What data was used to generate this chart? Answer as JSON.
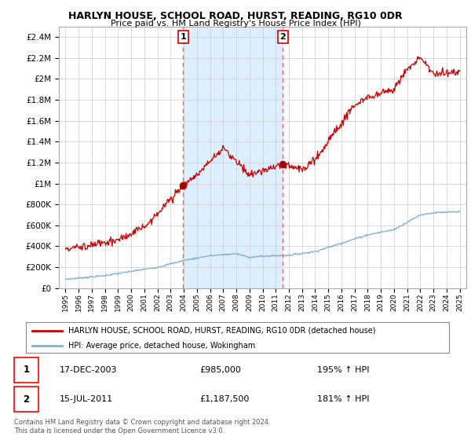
{
  "title1": "HARLYN HOUSE, SCHOOL ROAD, HURST, READING, RG10 0DR",
  "title2": "Price paid vs. HM Land Registry's House Price Index (HPI)",
  "legend_line1": "HARLYN HOUSE, SCHOOL ROAD, HURST, READING, RG10 0DR (detached house)",
  "legend_line2": "HPI: Average price, detached house, Wokingham",
  "annotation1_date": "17-DEC-2003",
  "annotation1_price": "£985,000",
  "annotation1_hpi": "195% ↑ HPI",
  "annotation2_date": "15-JUL-2011",
  "annotation2_price": "£1,187,500",
  "annotation2_hpi": "181% ↑ HPI",
  "footer": "Contains HM Land Registry data © Crown copyright and database right 2024.\nThis data is licensed under the Open Government Licence v3.0.",
  "sale1_x": 2003.96,
  "sale1_y": 985000,
  "sale2_x": 2011.54,
  "sale2_y": 1187500,
  "ylim": [
    0,
    2500000
  ],
  "xlim": [
    1994.5,
    2025.5
  ],
  "red_color": "#cc0000",
  "blue_color": "#7bafd4",
  "bg_stripe_color": "#ddeeff",
  "vline_color": "#ee6666",
  "grid_color": "#cccccc",
  "yticks": [
    0,
    200000,
    400000,
    600000,
    800000,
    1000000,
    1200000,
    1400000,
    1600000,
    1800000,
    2000000,
    2200000,
    2400000
  ],
  "yticklabels": [
    "£0",
    "£200K",
    "£400K",
    "£600K",
    "£800K",
    "£1M",
    "£1.2M",
    "£1.4M",
    "£1.6M",
    "£1.8M",
    "£2M",
    "£2.2M",
    "£2.4M"
  ]
}
